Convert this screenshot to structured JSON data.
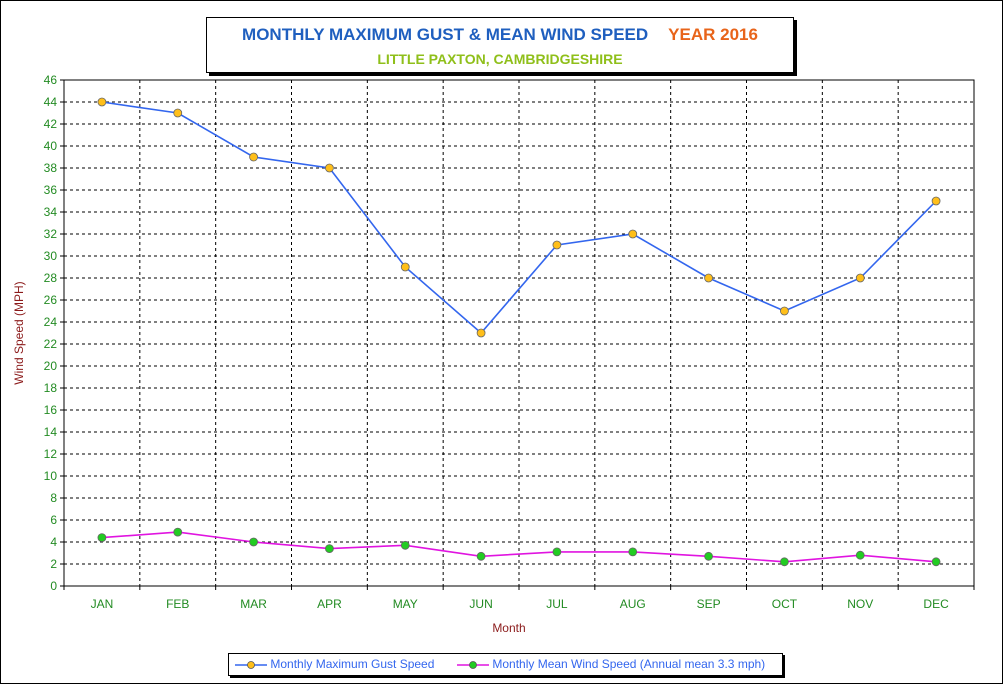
{
  "title": {
    "main": "MONTHLY MAXIMUM GUST & MEAN WIND SPEED",
    "year": "YEAR 2016",
    "subtitle": "LITTLE PAXTON, CAMBRIDGESHIRE"
  },
  "colors": {
    "title_main": "#1f5fbf",
    "title_year": "#e8641a",
    "subtitle": "#8fbf1a",
    "axis_text": "#228b22",
    "axis_label": "#8b1a1a",
    "gust_line": "#3366ee",
    "gust_marker": "#ffbf1a",
    "mean_line": "#e014e0",
    "mean_marker": "#22cc22",
    "grid": "#000000"
  },
  "chart_data": {
    "type": "line",
    "categories": [
      "JAN",
      "FEB",
      "MAR",
      "APR",
      "MAY",
      "JUN",
      "JUL",
      "AUG",
      "SEP",
      "OCT",
      "NOV",
      "DEC"
    ],
    "series": [
      {
        "name": "Monthly Maximum Gust Speed",
        "values": [
          44,
          43,
          39,
          38,
          29,
          23,
          31,
          32,
          28,
          25,
          28,
          35
        ]
      },
      {
        "name": "Monthly Mean Wind Speed (Annual mean 3.3 mph)",
        "values": [
          4.4,
          4.9,
          4.0,
          3.4,
          3.7,
          2.7,
          3.1,
          3.1,
          2.7,
          2.2,
          2.8,
          2.2
        ]
      }
    ],
    "xlabel": "Month",
    "ylabel": "Wind Speed (MPH)",
    "ylim": [
      0,
      46
    ],
    "yticks": [
      0,
      2,
      4,
      6,
      8,
      10,
      12,
      14,
      16,
      18,
      20,
      22,
      24,
      26,
      28,
      30,
      32,
      34,
      36,
      38,
      40,
      42,
      44,
      46
    ],
    "grid": true,
    "legend_position": "bottom"
  }
}
